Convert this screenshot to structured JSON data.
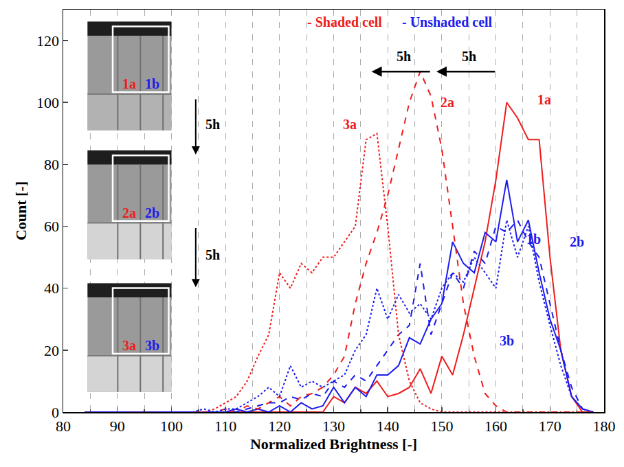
{
  "chart_data": {
    "type": "line",
    "x_label": "Normalized Brightness [-]",
    "y_label": "Count [-]",
    "xlim": [
      80,
      180
    ],
    "xticks": [
      80,
      90,
      100,
      110,
      120,
      130,
      140,
      150,
      160,
      170,
      180
    ],
    "ylim": [
      0,
      130
    ],
    "yticks": [
      0,
      20,
      40,
      60,
      80,
      100,
      120
    ],
    "grid": "x",
    "x": [
      84,
      86,
      88,
      90,
      92,
      94,
      96,
      98,
      100,
      102,
      104,
      106,
      108,
      110,
      112,
      114,
      116,
      118,
      120,
      122,
      124,
      126,
      128,
      130,
      132,
      134,
      136,
      138,
      140,
      142,
      144,
      146,
      148,
      150,
      152,
      154,
      156,
      158,
      160,
      162,
      164,
      166,
      168,
      170,
      172,
      174,
      176,
      178
    ],
    "series": [
      {
        "name": "1a",
        "color": "#ee1c1c",
        "line_style": "solid",
        "values": [
          0,
          0,
          0,
          0,
          0,
          0,
          0,
          0,
          0,
          0,
          0,
          0,
          0,
          0,
          0,
          0,
          0,
          0,
          0,
          0,
          0,
          0,
          0,
          5,
          3,
          8,
          6,
          10,
          5,
          6,
          8,
          14,
          6,
          18,
          12,
          25,
          40,
          55,
          75,
          100,
          95,
          88,
          88,
          50,
          20,
          5,
          0,
          0
        ]
      },
      {
        "name": "1b",
        "color": "#1c1cee",
        "line_style": "solid",
        "values": [
          0,
          0,
          0,
          0,
          0,
          0,
          0,
          0,
          0,
          0,
          0,
          0,
          0,
          0,
          1,
          0,
          1,
          0,
          2,
          0,
          3,
          1,
          2,
          8,
          3,
          8,
          5,
          12,
          12,
          15,
          24,
          22,
          30,
          35,
          55,
          48,
          45,
          58,
          55,
          75,
          55,
          62,
          45,
          30,
          20,
          5,
          1,
          0
        ]
      },
      {
        "name": "2a",
        "color": "#ee1c1c",
        "line_style": "dash",
        "values": [
          0,
          0,
          0,
          0,
          0,
          0,
          0,
          0,
          0,
          0,
          0,
          0,
          0,
          1,
          0,
          2,
          1,
          3,
          5,
          2,
          5,
          6,
          8,
          12,
          18,
          35,
          48,
          58,
          70,
          85,
          100,
          110,
          102,
          85,
          60,
          35,
          18,
          6,
          2,
          0,
          0,
          0,
          0,
          0,
          0,
          0,
          0,
          0
        ]
      },
      {
        "name": "2b",
        "color": "#1c1cee",
        "line_style": "dash",
        "values": [
          0,
          0,
          0,
          0,
          0,
          0,
          0,
          0,
          0,
          0,
          0,
          0,
          0,
          0,
          0,
          1,
          2,
          3,
          3,
          5,
          4,
          6,
          5,
          10,
          8,
          12,
          10,
          15,
          20,
          25,
          28,
          48,
          25,
          35,
          45,
          40,
          52,
          48,
          60,
          58,
          62,
          55,
          50,
          35,
          20,
          8,
          1,
          0
        ]
      },
      {
        "name": "3a",
        "color": "#ee1c1c",
        "line_style": "dot",
        "values": [
          0,
          0,
          0,
          0,
          0,
          0,
          0,
          0,
          0,
          0,
          0,
          0,
          1,
          3,
          5,
          10,
          18,
          25,
          45,
          40,
          48,
          45,
          50,
          50,
          55,
          60,
          88,
          90,
          60,
          25,
          10,
          3,
          1,
          0,
          0,
          0,
          0,
          0,
          0,
          0,
          0,
          0,
          0,
          0,
          0,
          0,
          0,
          0
        ]
      },
      {
        "name": "3b",
        "color": "#1c1cee",
        "line_style": "dot",
        "values": [
          0,
          0,
          0,
          0,
          0,
          0,
          0,
          0,
          0,
          0,
          0,
          1,
          0,
          1,
          1,
          3,
          5,
          8,
          5,
          15,
          8,
          10,
          8,
          10,
          12,
          20,
          25,
          40,
          30,
          38,
          32,
          35,
          30,
          40,
          45,
          42,
          50,
          45,
          40,
          62,
          50,
          60,
          42,
          28,
          15,
          5,
          1,
          0
        ]
      }
    ],
    "annotations": [
      {
        "text": "- Shaded cell",
        "x": 132,
        "y": 126,
        "color": "#ee1c1c"
      },
      {
        "text": "- Unshaded cell",
        "x": 151,
        "y": 126,
        "color": "#1c1cee"
      },
      {
        "text": "5h",
        "x": 143,
        "y": 115,
        "color": "#000000",
        "arrow_from": 148,
        "arrow_to": 137,
        "arrow_y": 110
      },
      {
        "text": "5h",
        "x": 155,
        "y": 115,
        "color": "#000000",
        "arrow_from": 160,
        "arrow_to": 149,
        "arrow_y": 110
      },
      {
        "text": "1a",
        "x": 169,
        "y": 101,
        "color": "#ee1c1c"
      },
      {
        "text": "2a",
        "x": 151,
        "y": 100,
        "color": "#ee1c1c"
      },
      {
        "text": "3a",
        "x": 133,
        "y": 93,
        "color": "#ee1c1c"
      },
      {
        "text": "1b",
        "x": 167,
        "y": 56,
        "color": "#1c1cee"
      },
      {
        "text": "2b",
        "x": 175,
        "y": 55,
        "color": "#1c1cee"
      },
      {
        "text": "3b",
        "x": 162,
        "y": 23,
        "color": "#1c1cee"
      }
    ],
    "insets": [
      {
        "labels": [
          "1a",
          "1b"
        ],
        "label_colors": [
          "#ee1c1c",
          "#1c1cee"
        ]
      },
      {
        "labels": [
          "2a",
          "2b"
        ],
        "label_colors": [
          "#ee1c1c",
          "#1c1cee"
        ]
      },
      {
        "labels": [
          "3a",
          "3b"
        ],
        "label_colors": [
          "#ee1c1c",
          "#1c1cee"
        ]
      }
    ],
    "inset_step": "5h"
  }
}
